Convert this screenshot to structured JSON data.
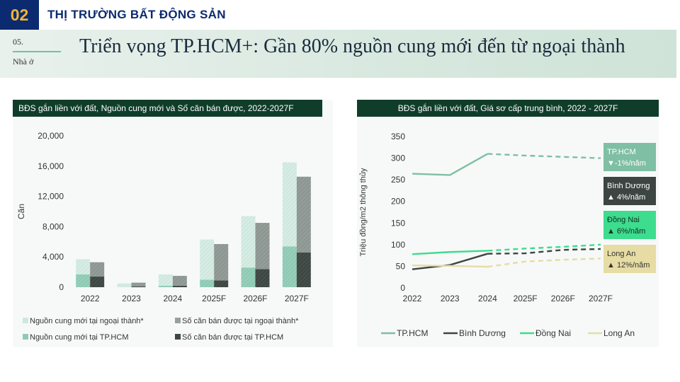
{
  "header": {
    "section_number": "02",
    "section_title": "THỊ TRƯỜNG BẤT ĐỘNG SẢN"
  },
  "banner": {
    "number": "05.",
    "subtitle": "Nhà ở",
    "title": "Triển vọng TP.HCM+: Gần 80% nguồn cung mới đến từ ngoại thành"
  },
  "colors": {
    "navy": "#0b2a6f",
    "gold": "#f0b43a",
    "dark_green": "#0f3d2a",
    "mint": "#6ec3a3"
  },
  "chart_data": [
    {
      "type": "bar",
      "title": "BĐS gắn liền với đất, Nguồn cung mới và Số căn bán được, 2022-2027F",
      "ylabel": "Căn",
      "ylim": [
        0,
        20000
      ],
      "y_ticks": [
        "0",
        "4,000",
        "8,000",
        "12,000",
        "16,000",
        "20,000"
      ],
      "categories": [
        "2022",
        "2023",
        "2024",
        "2025F",
        "2026F",
        "2027F"
      ],
      "stacked_pairs": true,
      "series": [
        {
          "name": "Nguồn cung mới tại TP.HCM",
          "group": "supply",
          "values": [
            1700,
            0,
            200,
            1000,
            2600,
            5400
          ]
        },
        {
          "name": "Nguồn cung mới tại ngoại thành*",
          "group": "supply",
          "values": [
            2000,
            500,
            1500,
            5300,
            6800,
            11100
          ]
        },
        {
          "name": "Số căn bán được tại TP.HCM",
          "group": "sold",
          "values": [
            1400,
            100,
            200,
            900,
            2400,
            4600
          ]
        },
        {
          "name": "Số căn bán được tại ngoại thành*",
          "group": "sold",
          "values": [
            1900,
            500,
            1300,
            4800,
            6100,
            10000
          ]
        }
      ],
      "legend": "bottom"
    },
    {
      "type": "line",
      "title": "BĐS gắn liền với đất, Giá sơ cấp trung bình, 2022 - 2027F",
      "ylabel": "Triệu đồng/m2 thông thủy",
      "ylim": [
        0,
        350
      ],
      "y_ticks": [
        "0",
        "50",
        "100",
        "150",
        "200",
        "250",
        "300",
        "350"
      ],
      "x": [
        "2022",
        "2023",
        "2024",
        "2025F",
        "2026F",
        "2027F"
      ],
      "forecast_from_index": 2,
      "series": [
        {
          "name": "TP.HCM",
          "values": [
            264,
            261,
            310,
            306,
            303,
            300
          ]
        },
        {
          "name": "Bình Dương",
          "values": [
            43,
            53,
            79,
            80,
            88,
            90
          ]
        },
        {
          "name": "Đồng Nai",
          "values": [
            78,
            83,
            86,
            91,
            95,
            100
          ]
        },
        {
          "name": "Long An",
          "values": [
            52,
            51,
            49,
            61,
            65,
            68
          ]
        }
      ],
      "annotations": [
        {
          "name": "TP.HCM",
          "growth": "▼-1%/năm"
        },
        {
          "name": "Bình Dương",
          "growth": "▲ 4%/năm"
        },
        {
          "name": "Đồng Nai",
          "growth": "▲ 6%/năm"
        },
        {
          "name": "Long An",
          "growth": "▲ 12%/năm"
        }
      ],
      "legend": "bottom"
    }
  ]
}
